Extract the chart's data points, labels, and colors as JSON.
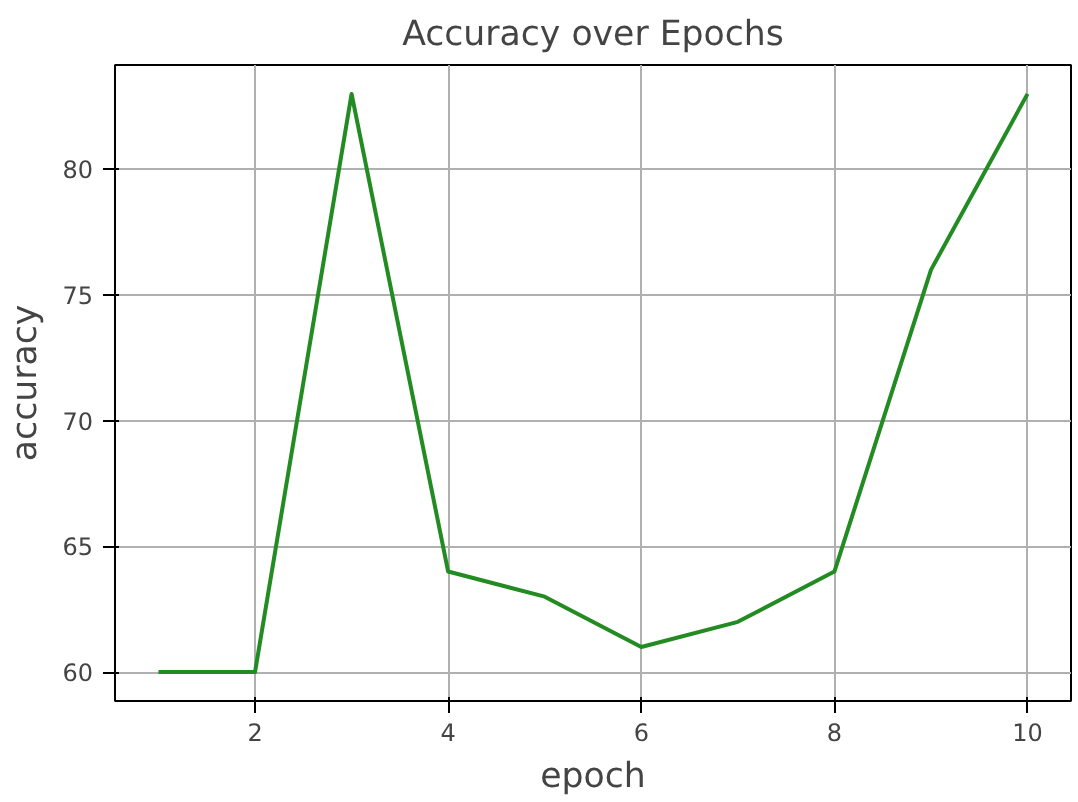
{
  "chart_data": {
    "type": "line",
    "title": "Accuracy over Epochs",
    "xlabel": "epoch",
    "ylabel": "accuracy",
    "x": [
      1,
      2,
      3,
      4,
      5,
      6,
      7,
      8,
      9,
      10
    ],
    "series": [
      {
        "color": "#228b22",
        "values": [
          60,
          60,
          83,
          64,
          63,
          61,
          62,
          64,
          76,
          83
        ]
      }
    ],
    "xlim": [
      0.55,
      10.45
    ],
    "ylim": [
      58.85,
      84.15
    ],
    "xticks": [
      2,
      4,
      6,
      8,
      10
    ],
    "yticks": [
      60,
      65,
      70,
      75,
      80
    ],
    "grid": true,
    "line_style": "solid"
  }
}
